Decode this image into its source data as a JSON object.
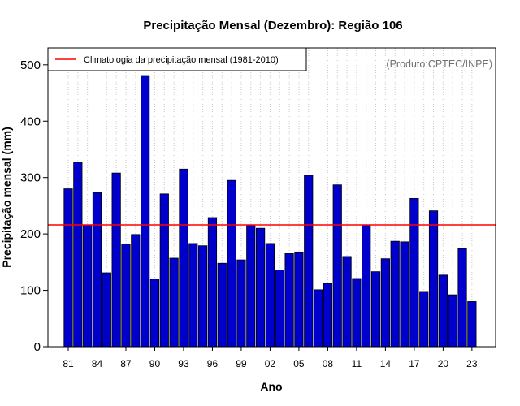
{
  "chart_data": {
    "type": "bar",
    "title": "Precipitação Mensal (Dezembro): Região 106",
    "xlabel": "Ano",
    "ylabel": "Precipitação mensal (mm)",
    "credit": "(Produto:CPTEC/INPE)",
    "ylim": [
      0,
      530
    ],
    "yticks": [
      "0",
      "100",
      "200",
      "300",
      "400",
      "500"
    ],
    "ytick_values": [
      0,
      100,
      200,
      300,
      400,
      500
    ],
    "categories": [
      "81",
      "82",
      "83",
      "84",
      "85",
      "86",
      "87",
      "88",
      "89",
      "90",
      "91",
      "92",
      "93",
      "94",
      "95",
      "96",
      "97",
      "98",
      "99",
      "00",
      "01",
      "02",
      "03",
      "04",
      "05",
      "06",
      "07",
      "08",
      "09",
      "10",
      "11",
      "12",
      "13",
      "14",
      "15",
      "16",
      "17",
      "18",
      "19",
      "20",
      "21",
      "22",
      "23"
    ],
    "xtick_labels": [
      "81",
      "84",
      "87",
      "90",
      "93",
      "96",
      "99",
      "02",
      "05",
      "08",
      "11",
      "14",
      "17",
      "20",
      "23"
    ],
    "values": [
      280,
      327,
      216,
      273,
      131,
      308,
      182,
      199,
      481,
      120,
      271,
      157,
      315,
      183,
      179,
      229,
      148,
      295,
      154,
      216,
      210,
      183,
      136,
      165,
      168,
      304,
      101,
      112,
      287,
      160,
      121,
      216,
      133,
      156,
      187,
      186,
      263,
      98,
      241,
      127,
      92,
      174,
      80
    ],
    "bar_color": "#0000cc",
    "climatology": {
      "label": "Climatologia da precipitação mensal (1981-2010)",
      "value": 216,
      "color": "#ff0000"
    },
    "grid": "vertical-dotted",
    "legend_position": "top-left"
  }
}
